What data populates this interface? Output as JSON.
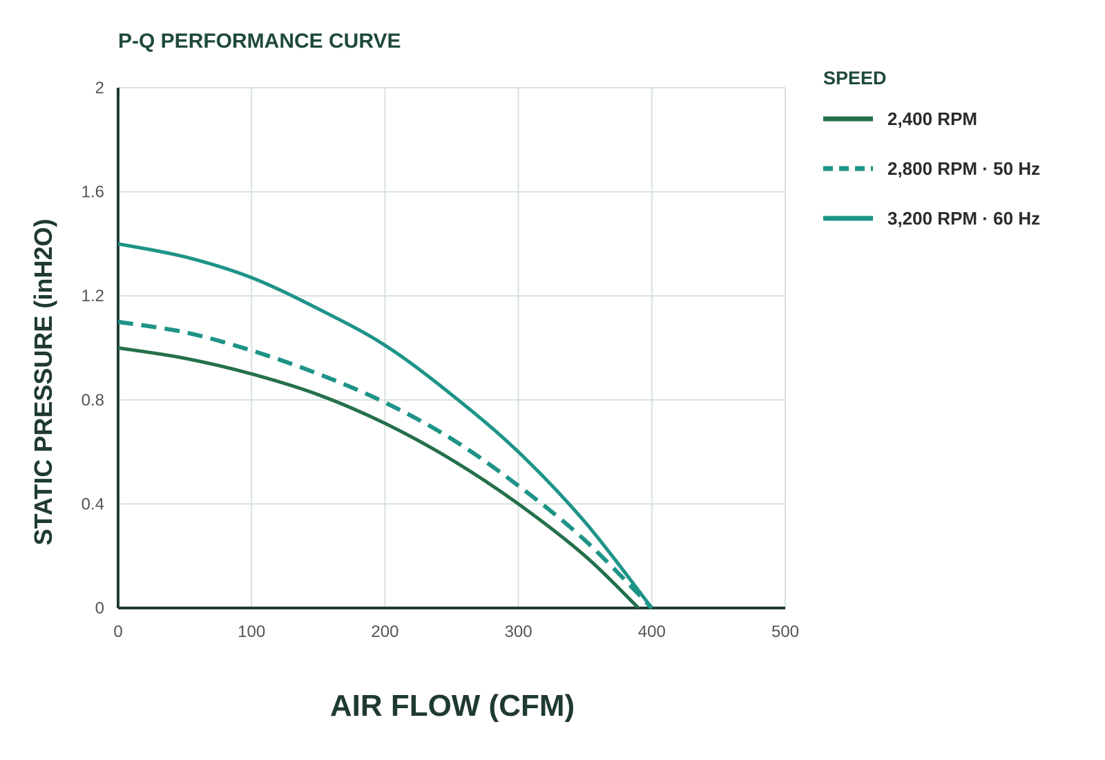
{
  "chart_data": {
    "type": "line",
    "title": "P-Q PERFORMANCE CURVE",
    "xlabel": "AIR FLOW (CFM)",
    "ylabel": "STATIC PRESSURE (inH2O)",
    "xlim": [
      0,
      500
    ],
    "ylim": [
      0,
      2
    ],
    "x_ticks": [
      "0",
      "100",
      "200",
      "300",
      "400",
      "500"
    ],
    "y_ticks": [
      "0",
      "0.4",
      "0.8",
      "1.2",
      "1.6",
      "2"
    ],
    "grid": true,
    "legend": {
      "title": "SPEED",
      "placement": "right"
    },
    "series": [
      {
        "name": "2,400 RPM",
        "color": "#24704a",
        "dash": "solid",
        "x": [
          0,
          50,
          100,
          150,
          200,
          250,
          300,
          350,
          390
        ],
        "y": [
          1.0,
          0.96,
          0.9,
          0.82,
          0.71,
          0.57,
          0.4,
          0.2,
          0.0
        ]
      },
      {
        "name": "2,800 RPM · 50 Hz",
        "color": "#1e9488",
        "dash": "dashed",
        "x": [
          0,
          50,
          100,
          150,
          200,
          250,
          300,
          350,
          400
        ],
        "y": [
          1.1,
          1.06,
          0.99,
          0.9,
          0.79,
          0.65,
          0.47,
          0.26,
          0.0
        ]
      },
      {
        "name": "3,200 RPM · 60 Hz",
        "color": "#1e9488",
        "dash": "solid",
        "x": [
          0,
          50,
          100,
          150,
          200,
          250,
          300,
          350,
          400
        ],
        "y": [
          1.4,
          1.35,
          1.27,
          1.15,
          1.01,
          0.82,
          0.6,
          0.33,
          0.0
        ]
      }
    ]
  }
}
